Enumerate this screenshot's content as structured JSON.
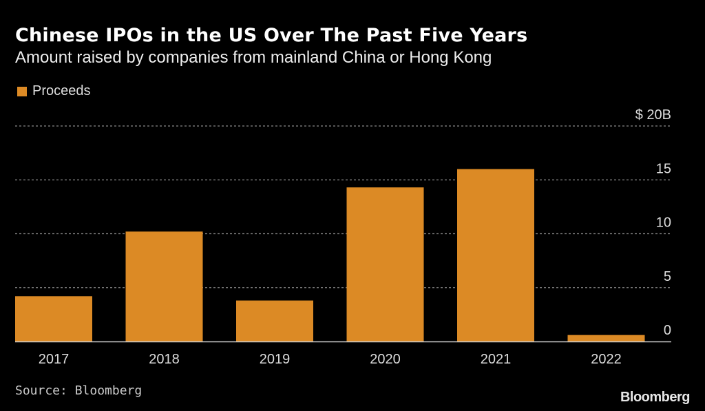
{
  "header": {
    "title": "Chinese IPOs in the US Over The Past Five Years",
    "subtitle": "Amount raised by companies from mainland China or Hong Kong"
  },
  "legend": {
    "label": "Proceeds",
    "color": "#dc8a25"
  },
  "footer": {
    "source": "Source: Bloomberg",
    "brand": "Bloomberg"
  },
  "chart_data": {
    "type": "bar",
    "title": "Chinese IPOs in the US Over The Past Five Years",
    "subtitle": "Amount raised by companies from mainland China or Hong Kong",
    "categories": [
      "2017",
      "2018",
      "2019",
      "2020",
      "2021",
      "2022"
    ],
    "series": [
      {
        "name": "Proceeds",
        "values": [
          4.2,
          10.2,
          3.8,
          14.3,
          16.0,
          0.6
        ],
        "color": "#dc8a25"
      }
    ],
    "xlabel": "",
    "ylabel": "",
    "ylim": [
      0,
      20
    ],
    "yticks": [
      0,
      5,
      10,
      15,
      20
    ],
    "ytick_labels": [
      "0",
      "5",
      "10",
      "15",
      "$ 20B"
    ],
    "grid": true,
    "legend_position": "top-left",
    "y_axis_position": "right"
  }
}
